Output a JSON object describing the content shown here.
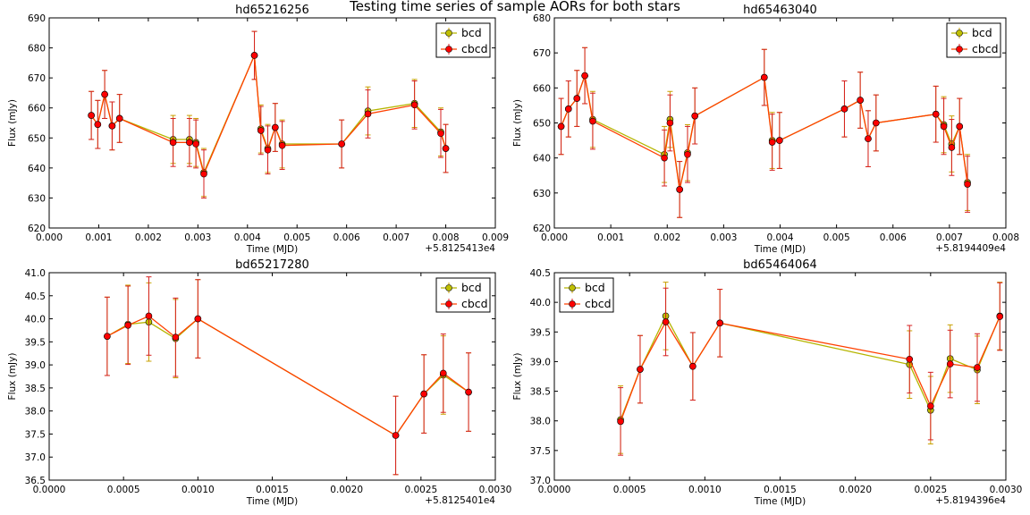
{
  "title": "Testing time series of sample AORs for both stars",
  "colors": {
    "bcd": "#b5b500",
    "bcd_marker": "#bfbf00",
    "cbcd": "#e41a1c",
    "cbcd_marker": "#ff0000",
    "cbcd_line": "#ff4000"
  },
  "chart_data": [
    {
      "type": "line",
      "title": "hd65216256",
      "xlabel": "Time (MJD)",
      "ylabel": "Flux (mJy)",
      "x_offset_label": "+5.8125413e4",
      "xlim": [
        0,
        0.009
      ],
      "ylim": [
        620,
        690
      ],
      "xticks": [
        "0.000",
        "0.001",
        "0.002",
        "0.003",
        "0.004",
        "0.005",
        "0.006",
        "0.007",
        "0.008",
        "0.009"
      ],
      "yticks": [
        "620",
        "630",
        "640",
        "650",
        "660",
        "670",
        "680",
        "690"
      ],
      "legend": "upper right",
      "series": [
        {
          "name": "bcd",
          "x": [
            0.00085,
            0.00098,
            0.00112,
            0.00127,
            0.00142,
            0.0025,
            0.00283,
            0.00296,
            0.00312,
            0.00414,
            0.00427,
            0.00441,
            0.00456,
            0.0047,
            0.0059,
            0.00643,
            0.00737,
            0.0079,
            0.008
          ],
          "y": [
            657.5,
            654.5,
            664.5,
            654,
            656.5,
            649.5,
            649.5,
            648.5,
            638.5,
            677.5,
            653,
            646.5,
            653.5,
            648,
            648,
            659,
            661.5,
            652,
            646.5
          ],
          "err": [
            8,
            8,
            8,
            8,
            8,
            8,
            8,
            8,
            8,
            8,
            8,
            8,
            8,
            8,
            8,
            8,
            8,
            8,
            8
          ]
        },
        {
          "name": "cbcd",
          "x": [
            0.00085,
            0.00098,
            0.00112,
            0.00127,
            0.00142,
            0.0025,
            0.00283,
            0.00296,
            0.00312,
            0.00414,
            0.00427,
            0.00441,
            0.00456,
            0.0047,
            0.0059,
            0.00643,
            0.00737,
            0.0079,
            0.008
          ],
          "y": [
            657.5,
            654.5,
            664.5,
            654,
            656.5,
            648.5,
            648.5,
            648,
            638,
            677.5,
            652.5,
            646,
            653.5,
            647.5,
            648,
            658,
            661,
            651.5,
            646.5
          ],
          "err": [
            8,
            8,
            8,
            8,
            8,
            8,
            8,
            8,
            8,
            8,
            8,
            8,
            8,
            8,
            8,
            8,
            8,
            8,
            8
          ]
        }
      ]
    },
    {
      "type": "line",
      "title": "hd65463040",
      "xlabel": "Time (MJD)",
      "ylabel": "Flux (mJy)",
      "x_offset_label": "+5.8194409e4",
      "xlim": [
        0,
        0.008
      ],
      "ylim": [
        620,
        680
      ],
      "xticks": [
        "0.000",
        "0.001",
        "0.002",
        "0.003",
        "0.004",
        "0.005",
        "0.006",
        "0.007",
        "0.008"
      ],
      "yticks": [
        "620",
        "630",
        "640",
        "650",
        "660",
        "670",
        "680"
      ],
      "legend": "upper right",
      "series": [
        {
          "name": "bcd",
          "x": [
            0.00012,
            0.00025,
            0.0004,
            0.00054,
            0.00068,
            0.00195,
            0.00205,
            0.00222,
            0.00236,
            0.00249,
            0.00372,
            0.00386,
            0.00399,
            0.00514,
            0.00542,
            0.00556,
            0.0057,
            0.00676,
            0.0069,
            0.00704,
            0.00718,
            0.00732
          ],
          "y": [
            649,
            654,
            657,
            663.5,
            651,
            641,
            651,
            631,
            641.5,
            652,
            663,
            645,
            645,
            654,
            656.5,
            645.5,
            650,
            652.5,
            649.5,
            644,
            649,
            633
          ],
          "err": [
            8,
            8,
            8,
            8,
            8,
            8,
            8,
            8,
            8,
            8,
            8,
            8,
            8,
            8,
            8,
            8,
            8,
            8,
            8,
            8,
            8,
            8
          ]
        },
        {
          "name": "cbcd",
          "x": [
            0.00012,
            0.00025,
            0.0004,
            0.00054,
            0.00068,
            0.00195,
            0.00205,
            0.00222,
            0.00236,
            0.00249,
            0.00372,
            0.00386,
            0.00399,
            0.00514,
            0.00542,
            0.00556,
            0.0057,
            0.00676,
            0.0069,
            0.00704,
            0.00718,
            0.00732
          ],
          "y": [
            649,
            654,
            657,
            663.5,
            650.5,
            640,
            650,
            631,
            641,
            652,
            663,
            644.5,
            645,
            654,
            656.5,
            645.5,
            650,
            652.5,
            649,
            643,
            649,
            632.5
          ],
          "err": [
            8,
            8,
            8,
            8,
            8,
            8,
            8,
            8,
            8,
            8,
            8,
            8,
            8,
            8,
            8,
            8,
            8,
            8,
            8,
            8,
            8,
            8
          ]
        }
      ]
    },
    {
      "type": "line",
      "title": "bd65217280",
      "xlabel": "Time (MJD)",
      "ylabel": "Flux (mJy)",
      "x_offset_label": "+5.8125401e4",
      "xlim": [
        0,
        0.003
      ],
      "ylim": [
        36.5,
        41.0
      ],
      "xticks": [
        "0.0000",
        "0.0005",
        "0.0010",
        "0.0015",
        "0.0020",
        "0.0025",
        "0.0030"
      ],
      "yticks": [
        "36.5",
        "37.0",
        "37.5",
        "38.0",
        "38.5",
        "39.0",
        "39.5",
        "40.0",
        "40.5",
        "41.0"
      ],
      "legend": "upper right",
      "series": [
        {
          "name": "bcd",
          "x": [
            0.00039,
            0.00053,
            0.00067,
            0.00085,
            0.001,
            0.00233,
            0.00252,
            0.00265,
            0.00282
          ],
          "y": [
            39.62,
            39.88,
            39.93,
            39.57,
            40.0,
            37.47,
            38.37,
            38.78,
            38.41
          ],
          "err": [
            0.85,
            0.85,
            0.85,
            0.85,
            0.85,
            0.85,
            0.85,
            0.85,
            0.85
          ]
        },
        {
          "name": "cbcd",
          "x": [
            0.00039,
            0.00053,
            0.00067,
            0.00085,
            0.001,
            0.00233,
            0.00252,
            0.00265,
            0.00282
          ],
          "y": [
            39.62,
            39.86,
            40.06,
            39.6,
            40.0,
            37.47,
            38.37,
            38.82,
            38.41
          ],
          "err": [
            0.85,
            0.85,
            0.85,
            0.85,
            0.85,
            0.85,
            0.85,
            0.85,
            0.85
          ]
        }
      ]
    },
    {
      "type": "line",
      "title": "bd65464064",
      "xlabel": "Time (MJD)",
      "ylabel": "Flux (mJy)",
      "x_offset_label": "+5.8194396e4",
      "xlim": [
        0,
        0.003
      ],
      "ylim": [
        37.0,
        40.5
      ],
      "xticks": [
        "0.0000",
        "0.0005",
        "0.0010",
        "0.0015",
        "0.0020",
        "0.0025",
        "0.0030"
      ],
      "yticks": [
        "37.0",
        "37.5",
        "38.0",
        "38.5",
        "39.0",
        "39.5",
        "40.0",
        "40.5"
      ],
      "legend": "upper left",
      "series": [
        {
          "name": "bcd",
          "x": [
            0.00044,
            0.00057,
            0.00074,
            0.00092,
            0.0011,
            0.00236,
            0.0025,
            0.00263,
            0.00281,
            0.00296
          ],
          "y": [
            38.02,
            38.87,
            39.77,
            38.92,
            39.65,
            38.95,
            38.18,
            39.05,
            38.86,
            39.77
          ],
          "err": [
            0.57,
            0.57,
            0.57,
            0.57,
            0.57,
            0.57,
            0.57,
            0.57,
            0.57,
            0.57
          ]
        },
        {
          "name": "cbcd",
          "x": [
            0.00044,
            0.00057,
            0.00074,
            0.00092,
            0.0011,
            0.00236,
            0.0025,
            0.00263,
            0.00281,
            0.00296
          ],
          "y": [
            37.99,
            38.87,
            39.67,
            38.92,
            39.65,
            39.04,
            38.25,
            38.96,
            38.9,
            39.76
          ],
          "err": [
            0.57,
            0.57,
            0.57,
            0.57,
            0.57,
            0.57,
            0.57,
            0.57,
            0.57,
            0.57
          ]
        }
      ]
    }
  ]
}
